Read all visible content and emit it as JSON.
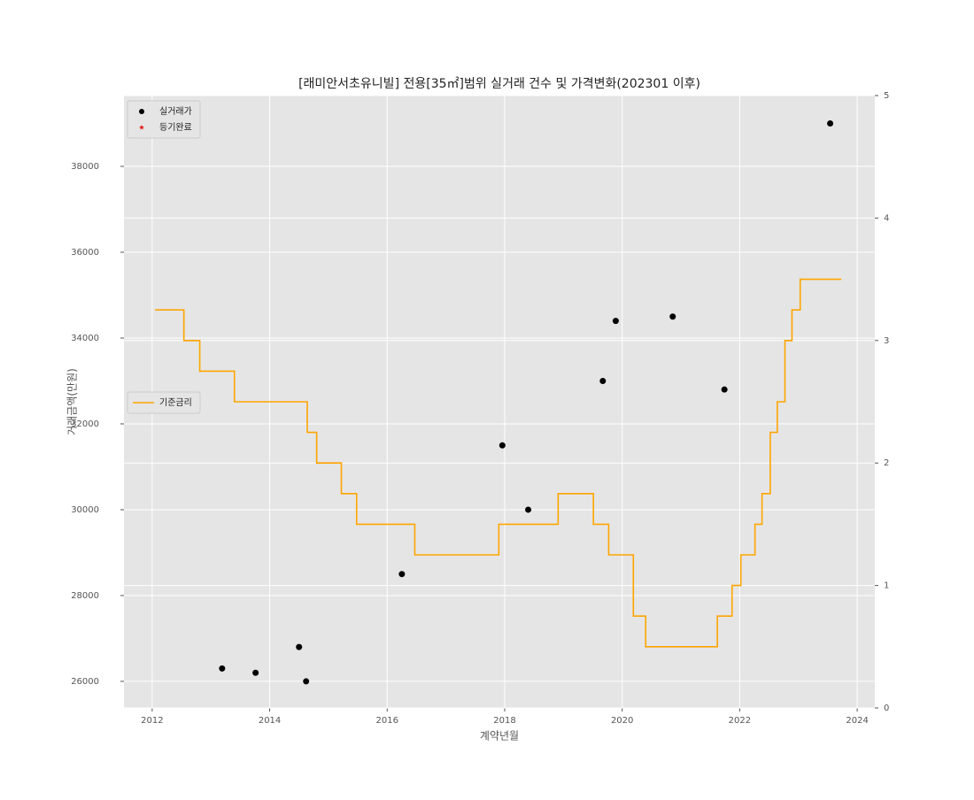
{
  "chart_data": {
    "type": "scatter",
    "title": "[래미안서초유니빌] 전용[35㎡]범위 실거래 건수 및 가격변화(202301 이후)",
    "xlabel": "계약년월",
    "ylabel": "거래금액(만원)",
    "xlim": [
      2011.52,
      2024.3
    ],
    "xticks": [
      2012,
      2014,
      2016,
      2018,
      2020,
      2022,
      2024
    ],
    "ylim": [
      25380,
      39650
    ],
    "yticks": [
      26000,
      28000,
      30000,
      32000,
      34000,
      36000,
      38000
    ],
    "y2lim": [
      0,
      5
    ],
    "y2ticks": [
      0,
      1,
      2,
      3,
      4,
      5
    ],
    "grid": true,
    "series": [
      {
        "name": "실거래가",
        "type": "scatter",
        "marker": "circle",
        "color": "#000000",
        "x": [
          2013.19,
          2013.76,
          2014.5,
          2014.62,
          2016.25,
          2017.96,
          2018.4,
          2019.67,
          2019.89,
          2020.86,
          2021.74,
          2023.54
        ],
        "values": [
          26300,
          26200,
          26800,
          26000,
          28500,
          31500,
          30000,
          33000,
          34400,
          34500,
          32800,
          39000
        ]
      },
      {
        "name": "등기완료",
        "type": "scatter",
        "marker": "star",
        "color": "#e41a1c",
        "x": [],
        "values": []
      },
      {
        "name": "기준금리",
        "type": "step",
        "axis": "y2",
        "color": "#ffa500",
        "x": [
          2012.05,
          2012.54,
          2012.81,
          2013.4,
          2014.64,
          2014.8,
          2015.22,
          2015.48,
          2016.47,
          2017.9,
          2018.91,
          2019.51,
          2019.77,
          2020.19,
          2020.4,
          2021.62,
          2021.87,
          2022.02,
          2022.26,
          2022.38,
          2022.52,
          2022.64,
          2022.77,
          2022.89,
          2023.03,
          2023.73
        ],
        "values": [
          3.25,
          3.0,
          2.75,
          2.5,
          2.25,
          2.0,
          1.75,
          1.5,
          1.25,
          1.5,
          1.75,
          1.5,
          1.25,
          0.75,
          0.5,
          0.75,
          1.0,
          1.25,
          1.5,
          1.75,
          2.25,
          2.5,
          3.0,
          3.25,
          3.5,
          3.5
        ]
      }
    ]
  }
}
